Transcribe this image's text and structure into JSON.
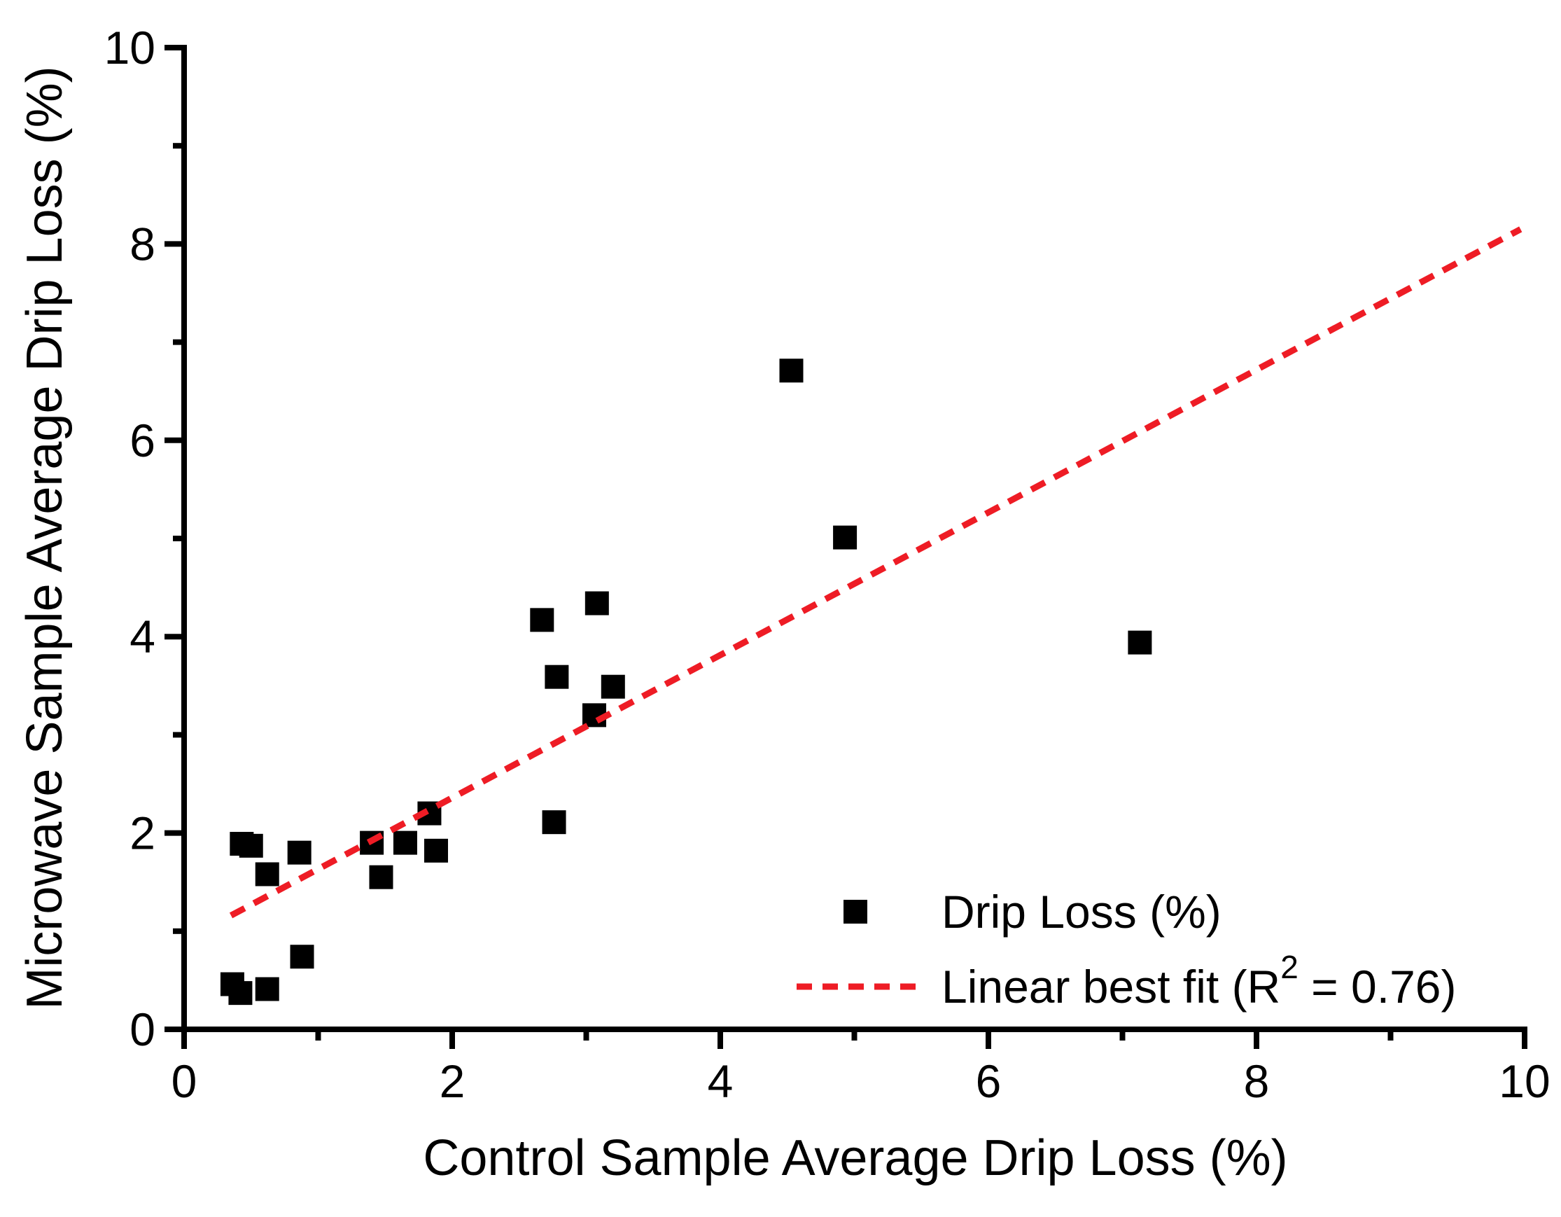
{
  "chart_data": {
    "type": "scatter",
    "title": "",
    "xlabel": "Control Sample Average Drip Loss (%)",
    "ylabel": "Microwave Sample Average Drip Loss (%)",
    "xlim": [
      0,
      10
    ],
    "ylim": [
      0,
      10
    ],
    "x_major_ticks": [
      0,
      2,
      4,
      6,
      8,
      10
    ],
    "x_minor_ticks": [
      1,
      3,
      5,
      7,
      9
    ],
    "x_tick_labels": [
      "0",
      "2",
      "4",
      "6",
      "8",
      "10"
    ],
    "y_major_ticks": [
      0,
      2,
      4,
      6,
      8,
      10
    ],
    "y_minor_ticks": [
      1,
      3,
      5,
      7,
      9
    ],
    "y_tick_labels": [
      "0",
      "2",
      "4",
      "6",
      "8",
      "10"
    ],
    "grid": false,
    "legend_position": "bottom-right",
    "series": [
      {
        "name": "Drip Loss (%)",
        "marker": "square",
        "color": "#000000",
        "points": [
          [
            0.36,
            0.46
          ],
          [
            0.42,
            0.37
          ],
          [
            0.62,
            0.41
          ],
          [
            0.88,
            0.74
          ],
          [
            0.43,
            1.89
          ],
          [
            0.5,
            1.87
          ],
          [
            0.62,
            1.58
          ],
          [
            0.86,
            1.8
          ],
          [
            1.4,
            1.9
          ],
          [
            1.65,
            1.9
          ],
          [
            1.47,
            1.55
          ],
          [
            1.83,
            2.2
          ],
          [
            1.88,
            1.82
          ],
          [
            2.67,
            4.17
          ],
          [
            2.78,
            3.59
          ],
          [
            2.76,
            2.11
          ],
          [
            3.08,
            4.34
          ],
          [
            3.2,
            3.49
          ],
          [
            3.06,
            3.2
          ],
          [
            4.53,
            6.71
          ],
          [
            4.93,
            5.01
          ],
          [
            7.13,
            3.94
          ]
        ]
      }
    ],
    "fit_line": {
      "style": "dashed",
      "color": "#ee1c25",
      "r_squared": 0.76,
      "x1": 0.35,
      "y1": 1.16,
      "x2": 9.97,
      "y2": 8.15
    },
    "legend": {
      "scatter_label": "Drip Loss (%)",
      "fit_label": {
        "full": "Linear best fit (R² = 0.76)",
        "prefix": "Linear best fit (R",
        "sup": "2",
        "suffix": " = 0.76)"
      }
    },
    "colors": {
      "marker": "#000000",
      "fit_line": "#ee1c25",
      "axis": "#000000",
      "background": "#ffffff"
    }
  }
}
